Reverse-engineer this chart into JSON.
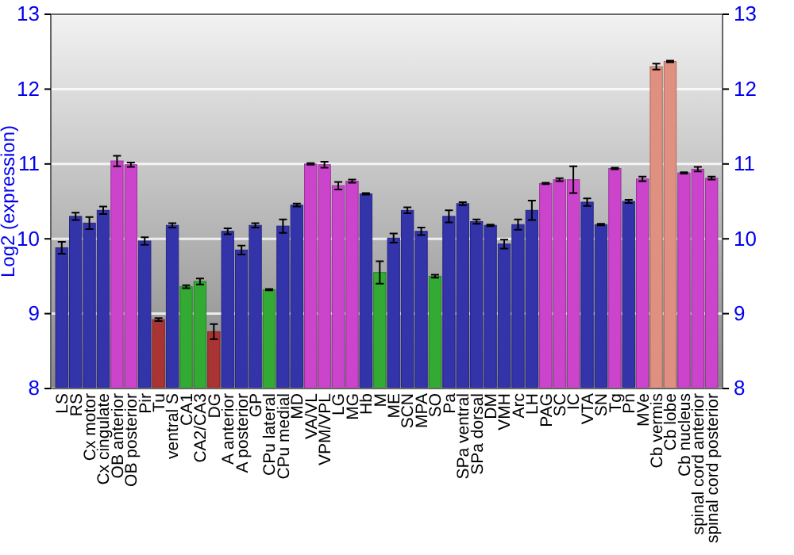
{
  "chart_data": {
    "type": "bar",
    "ylabel": "Log2 (expression)",
    "categories": [
      "LS",
      "RS",
      "Cx motor",
      "Cx cingulate",
      "OB anterior",
      "OB posterior",
      "Pir",
      "Tu",
      "ventral S",
      "CA1",
      "CA2/CA3",
      "DG",
      "A anterior",
      "A posterior",
      "GP",
      "CPu lateral",
      "CPu medial",
      "MD",
      "VA/VL",
      "VPM/VPL",
      "LG",
      "MG",
      "Hb",
      "M",
      "ME",
      "SCN",
      "MPA",
      "SO",
      "Pa",
      "SPa ventral",
      "SPa dorsal",
      "DM",
      "VMH",
      "Arc",
      "LH",
      "PAG",
      "SC",
      "IC",
      "VTA",
      "SN",
      "Tg",
      "Pn",
      "MVe",
      "Cb vermis",
      "Cb lobe",
      "Cb nucleus",
      "spinal cord anterior",
      "spinal cord posterior"
    ],
    "values": [
      9.88,
      10.3,
      10.21,
      10.38,
      11.04,
      10.99,
      9.97,
      8.92,
      10.18,
      9.36,
      9.43,
      8.76,
      10.1,
      9.85,
      10.18,
      9.32,
      10.17,
      10.45,
      11.0,
      10.99,
      10.71,
      10.77,
      10.6,
      9.55,
      10.01,
      10.38,
      10.1,
      9.5,
      10.3,
      10.47,
      10.23,
      10.18,
      9.93,
      10.19,
      10.38,
      10.74,
      10.79,
      10.79,
      10.49,
      10.19,
      10.94,
      10.5,
      10.8,
      12.3,
      12.37,
      10.88,
      10.93,
      10.81
    ],
    "errors": [
      0.08,
      0.05,
      0.08,
      0.05,
      0.07,
      0.03,
      0.05,
      0.02,
      0.03,
      0.02,
      0.04,
      0.1,
      0.04,
      0.06,
      0.03,
      0.01,
      0.09,
      0.02,
      0.01,
      0.04,
      0.05,
      0.02,
      0.01,
      0.15,
      0.06,
      0.04,
      0.05,
      0.02,
      0.08,
      0.02,
      0.03,
      0.01,
      0.06,
      0.07,
      0.13,
      0.01,
      0.02,
      0.18,
      0.05,
      0.01,
      0.01,
      0.02,
      0.03,
      0.04,
      0.01,
      0.01,
      0.03,
      0.02
    ],
    "colors": [
      "#3333aa",
      "#3333aa",
      "#3333aa",
      "#3333aa",
      "#cc44cc",
      "#cc44cc",
      "#3333aa",
      "#aa3333",
      "#3333aa",
      "#33aa33",
      "#33aa33",
      "#aa3333",
      "#3333aa",
      "#3333aa",
      "#3333aa",
      "#33aa33",
      "#3333aa",
      "#3333aa",
      "#cc44cc",
      "#cc44cc",
      "#cc44cc",
      "#cc44cc",
      "#3333aa",
      "#33aa33",
      "#3333aa",
      "#3333aa",
      "#3333aa",
      "#33aa33",
      "#3333aa",
      "#3333aa",
      "#3333aa",
      "#3333aa",
      "#3333aa",
      "#3333aa",
      "#3333aa",
      "#cc44cc",
      "#cc44cc",
      "#cc44cc",
      "#3333aa",
      "#3333aa",
      "#cc44cc",
      "#3333aa",
      "#cc44cc",
      "#e09080",
      "#e09080",
      "#cc44cc",
      "#cc44cc",
      "#cc44cc"
    ],
    "ylim": [
      8,
      13
    ],
    "yticks": [
      8,
      9,
      10,
      11,
      12,
      13
    ],
    "y2lim": [
      8,
      13
    ],
    "y2ticks": [
      8,
      9,
      10,
      11,
      12,
      13
    ],
    "grid": "y"
  }
}
